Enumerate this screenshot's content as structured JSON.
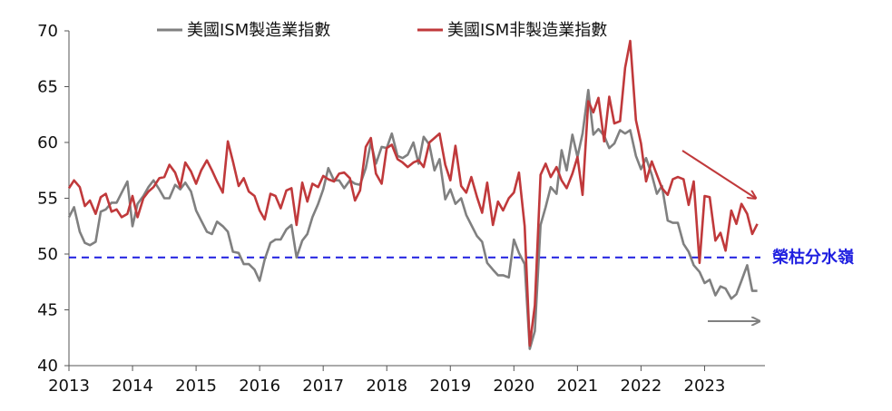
{
  "chart_data": {
    "type": "line",
    "title": "",
    "xlabel": "",
    "ylabel": "",
    "ylim": [
      40,
      70
    ],
    "yticks": [
      "40",
      "45",
      "50",
      "55",
      "60",
      "65",
      "70"
    ],
    "xticks": [
      "2013",
      "2014",
      "2015",
      "2016",
      "2017",
      "2018",
      "2019",
      "2020",
      "2021",
      "2022",
      "2023"
    ],
    "xlim": [
      2013.0,
      2023.95
    ],
    "grid": false,
    "legend_position": "top",
    "threshold": {
      "value": 49.7,
      "label": "榮枯分水嶺",
      "color": "#1f1fe0"
    },
    "series": [
      {
        "name": "美國ISM製造業指數",
        "color": "#808080",
        "points": [
          [
            2013.0,
            53.3
          ],
          [
            2013.08,
            54.2
          ],
          [
            2013.17,
            52.0
          ],
          [
            2013.25,
            51.0
          ],
          [
            2013.33,
            50.8
          ],
          [
            2013.42,
            51.1
          ],
          [
            2013.5,
            53.8
          ],
          [
            2013.58,
            54.0
          ],
          [
            2013.67,
            54.6
          ],
          [
            2013.75,
            54.6
          ],
          [
            2013.83,
            55.5
          ],
          [
            2013.92,
            56.5
          ],
          [
            2014.0,
            52.5
          ],
          [
            2014.08,
            54.5
          ],
          [
            2014.17,
            55.2
          ],
          [
            2014.25,
            56.0
          ],
          [
            2014.33,
            56.6
          ],
          [
            2014.42,
            55.8
          ],
          [
            2014.5,
            55.0
          ],
          [
            2014.58,
            55.0
          ],
          [
            2014.67,
            56.2
          ],
          [
            2014.75,
            55.8
          ],
          [
            2014.83,
            56.4
          ],
          [
            2014.92,
            55.6
          ],
          [
            2015.0,
            53.9
          ],
          [
            2015.08,
            53.0
          ],
          [
            2015.17,
            52.0
          ],
          [
            2015.25,
            51.8
          ],
          [
            2015.33,
            52.9
          ],
          [
            2015.42,
            52.5
          ],
          [
            2015.5,
            52.0
          ],
          [
            2015.58,
            50.2
          ],
          [
            2015.67,
            50.1
          ],
          [
            2015.75,
            49.1
          ],
          [
            2015.83,
            49.1
          ],
          [
            2015.92,
            48.6
          ],
          [
            2016.0,
            47.6
          ],
          [
            2016.08,
            49.5
          ],
          [
            2016.17,
            51.0
          ],
          [
            2016.25,
            51.3
          ],
          [
            2016.33,
            51.3
          ],
          [
            2016.42,
            52.2
          ],
          [
            2016.5,
            52.6
          ],
          [
            2016.58,
            49.7
          ],
          [
            2016.67,
            51.2
          ],
          [
            2016.75,
            51.8
          ],
          [
            2016.83,
            53.3
          ],
          [
            2016.92,
            54.5
          ],
          [
            2017.0,
            55.8
          ],
          [
            2017.08,
            57.7
          ],
          [
            2017.17,
            56.6
          ],
          [
            2017.25,
            56.6
          ],
          [
            2017.33,
            55.9
          ],
          [
            2017.42,
            56.6
          ],
          [
            2017.5,
            56.3
          ],
          [
            2017.58,
            56.2
          ],
          [
            2017.67,
            57.7
          ],
          [
            2017.75,
            60.0
          ],
          [
            2017.83,
            58.1
          ],
          [
            2017.92,
            59.6
          ],
          [
            2018.0,
            59.5
          ],
          [
            2018.08,
            60.8
          ],
          [
            2018.17,
            58.8
          ],
          [
            2018.25,
            58.6
          ],
          [
            2018.33,
            58.9
          ],
          [
            2018.42,
            60.0
          ],
          [
            2018.5,
            58.1
          ],
          [
            2018.58,
            60.5
          ],
          [
            2018.67,
            59.8
          ],
          [
            2018.75,
            57.5
          ],
          [
            2018.83,
            58.5
          ],
          [
            2018.92,
            54.9
          ],
          [
            2019.0,
            55.8
          ],
          [
            2019.08,
            54.5
          ],
          [
            2019.17,
            55.0
          ],
          [
            2019.25,
            53.5
          ],
          [
            2019.33,
            52.6
          ],
          [
            2019.42,
            51.6
          ],
          [
            2019.5,
            51.1
          ],
          [
            2019.58,
            49.2
          ],
          [
            2019.67,
            48.6
          ],
          [
            2019.75,
            48.1
          ],
          [
            2019.83,
            48.1
          ],
          [
            2019.92,
            47.9
          ],
          [
            2020.0,
            51.3
          ],
          [
            2020.08,
            50.1
          ],
          [
            2020.17,
            49.1
          ],
          [
            2020.25,
            41.5
          ],
          [
            2020.33,
            43.1
          ],
          [
            2020.42,
            52.6
          ],
          [
            2020.5,
            54.2
          ],
          [
            2020.58,
            56.0
          ],
          [
            2020.67,
            55.4
          ],
          [
            2020.75,
            59.3
          ],
          [
            2020.83,
            57.5
          ],
          [
            2020.92,
            60.7
          ],
          [
            2021.0,
            58.7
          ],
          [
            2021.08,
            60.8
          ],
          [
            2021.17,
            64.7
          ],
          [
            2021.25,
            60.7
          ],
          [
            2021.33,
            61.2
          ],
          [
            2021.42,
            60.6
          ],
          [
            2021.5,
            59.5
          ],
          [
            2021.58,
            59.9
          ],
          [
            2021.67,
            61.1
          ],
          [
            2021.75,
            60.8
          ],
          [
            2021.83,
            61.1
          ],
          [
            2021.92,
            58.8
          ],
          [
            2022.0,
            57.6
          ],
          [
            2022.08,
            58.6
          ],
          [
            2022.17,
            57.1
          ],
          [
            2022.25,
            55.4
          ],
          [
            2022.33,
            56.1
          ],
          [
            2022.42,
            53.0
          ],
          [
            2022.5,
            52.8
          ],
          [
            2022.58,
            52.8
          ],
          [
            2022.67,
            50.9
          ],
          [
            2022.75,
            50.2
          ],
          [
            2022.83,
            49.0
          ],
          [
            2022.92,
            48.4
          ],
          [
            2023.0,
            47.4
          ],
          [
            2023.08,
            47.7
          ],
          [
            2023.17,
            46.3
          ],
          [
            2023.25,
            47.1
          ],
          [
            2023.33,
            46.9
          ],
          [
            2023.42,
            46.0
          ],
          [
            2023.5,
            46.4
          ],
          [
            2023.58,
            47.6
          ],
          [
            2023.67,
            49.0
          ],
          [
            2023.75,
            46.7
          ],
          [
            2023.83,
            46.7
          ]
        ]
      },
      {
        "name": "美國ISM非製造業指數",
        "color": "#c0393b",
        "points": [
          [
            2013.0,
            55.9
          ],
          [
            2013.08,
            56.6
          ],
          [
            2013.17,
            56.0
          ],
          [
            2013.25,
            54.3
          ],
          [
            2013.33,
            54.8
          ],
          [
            2013.42,
            53.6
          ],
          [
            2013.5,
            55.1
          ],
          [
            2013.58,
            55.4
          ],
          [
            2013.67,
            53.8
          ],
          [
            2013.75,
            54.0
          ],
          [
            2013.83,
            53.3
          ],
          [
            2013.92,
            53.6
          ],
          [
            2014.0,
            55.2
          ],
          [
            2014.08,
            53.3
          ],
          [
            2014.17,
            55.0
          ],
          [
            2014.25,
            55.6
          ],
          [
            2014.33,
            56.0
          ],
          [
            2014.42,
            56.8
          ],
          [
            2014.5,
            56.9
          ],
          [
            2014.58,
            58.0
          ],
          [
            2014.67,
            57.3
          ],
          [
            2014.75,
            56.0
          ],
          [
            2014.83,
            58.2
          ],
          [
            2014.92,
            57.4
          ],
          [
            2015.0,
            56.3
          ],
          [
            2015.08,
            57.5
          ],
          [
            2015.17,
            58.4
          ],
          [
            2015.25,
            57.5
          ],
          [
            2015.33,
            56.5
          ],
          [
            2015.42,
            55.5
          ],
          [
            2015.5,
            60.1
          ],
          [
            2015.58,
            58.3
          ],
          [
            2015.67,
            56.1
          ],
          [
            2015.75,
            56.8
          ],
          [
            2015.83,
            55.6
          ],
          [
            2015.92,
            55.2
          ],
          [
            2016.0,
            53.9
          ],
          [
            2016.08,
            53.1
          ],
          [
            2016.17,
            55.4
          ],
          [
            2016.25,
            55.2
          ],
          [
            2016.33,
            54.1
          ],
          [
            2016.42,
            55.7
          ],
          [
            2016.5,
            55.9
          ],
          [
            2016.58,
            52.6
          ],
          [
            2016.67,
            56.4
          ],
          [
            2016.75,
            54.7
          ],
          [
            2016.83,
            56.3
          ],
          [
            2016.92,
            56.0
          ],
          [
            2017.0,
            57.0
          ],
          [
            2017.08,
            56.7
          ],
          [
            2017.17,
            56.5
          ],
          [
            2017.25,
            57.2
          ],
          [
            2017.33,
            57.3
          ],
          [
            2017.42,
            56.8
          ],
          [
            2017.5,
            54.8
          ],
          [
            2017.58,
            55.7
          ],
          [
            2017.67,
            59.6
          ],
          [
            2017.75,
            60.4
          ],
          [
            2017.83,
            57.2
          ],
          [
            2017.92,
            56.3
          ],
          [
            2018.0,
            59.5
          ],
          [
            2018.08,
            59.8
          ],
          [
            2018.17,
            58.5
          ],
          [
            2018.25,
            58.2
          ],
          [
            2018.33,
            57.8
          ],
          [
            2018.42,
            58.2
          ],
          [
            2018.5,
            58.4
          ],
          [
            2018.58,
            57.8
          ],
          [
            2018.67,
            60.0
          ],
          [
            2018.75,
            60.4
          ],
          [
            2018.83,
            60.8
          ],
          [
            2018.92,
            58.0
          ],
          [
            2019.0,
            56.6
          ],
          [
            2019.08,
            59.7
          ],
          [
            2019.17,
            56.1
          ],
          [
            2019.25,
            55.5
          ],
          [
            2019.33,
            56.9
          ],
          [
            2019.42,
            55.1
          ],
          [
            2019.5,
            53.7
          ],
          [
            2019.58,
            56.4
          ],
          [
            2019.67,
            52.6
          ],
          [
            2019.75,
            54.7
          ],
          [
            2019.83,
            53.9
          ],
          [
            2019.92,
            55.0
          ],
          [
            2020.0,
            55.5
          ],
          [
            2020.08,
            57.3
          ],
          [
            2020.17,
            52.5
          ],
          [
            2020.25,
            41.8
          ],
          [
            2020.33,
            45.4
          ],
          [
            2020.42,
            57.1
          ],
          [
            2020.5,
            58.1
          ],
          [
            2020.58,
            56.9
          ],
          [
            2020.67,
            57.8
          ],
          [
            2020.75,
            56.6
          ],
          [
            2020.83,
            55.9
          ],
          [
            2020.92,
            57.2
          ],
          [
            2021.0,
            58.7
          ],
          [
            2021.08,
            55.3
          ],
          [
            2021.17,
            63.7
          ],
          [
            2021.25,
            62.7
          ],
          [
            2021.33,
            64.0
          ],
          [
            2021.42,
            60.1
          ],
          [
            2021.5,
            64.1
          ],
          [
            2021.58,
            61.7
          ],
          [
            2021.67,
            61.9
          ],
          [
            2021.75,
            66.7
          ],
          [
            2021.83,
            69.1
          ],
          [
            2021.92,
            62.0
          ],
          [
            2022.0,
            59.9
          ],
          [
            2022.08,
            56.5
          ],
          [
            2022.17,
            58.3
          ],
          [
            2022.25,
            57.1
          ],
          [
            2022.33,
            55.9
          ],
          [
            2022.42,
            55.3
          ],
          [
            2022.5,
            56.7
          ],
          [
            2022.58,
            56.9
          ],
          [
            2022.67,
            56.7
          ],
          [
            2022.75,
            54.4
          ],
          [
            2022.83,
            56.5
          ],
          [
            2022.92,
            49.2
          ],
          [
            2023.0,
            55.2
          ],
          [
            2023.08,
            55.1
          ],
          [
            2023.17,
            51.2
          ],
          [
            2023.25,
            51.9
          ],
          [
            2023.33,
            50.3
          ],
          [
            2023.42,
            53.9
          ],
          [
            2023.5,
            52.7
          ],
          [
            2023.58,
            54.5
          ],
          [
            2023.67,
            53.6
          ],
          [
            2023.75,
            51.8
          ],
          [
            2023.83,
            52.7
          ]
        ]
      }
    ],
    "arrows": [
      {
        "series_color": "#c0393b",
        "direction": "down"
      },
      {
        "series_color": "#808080",
        "direction": "flat"
      }
    ]
  }
}
